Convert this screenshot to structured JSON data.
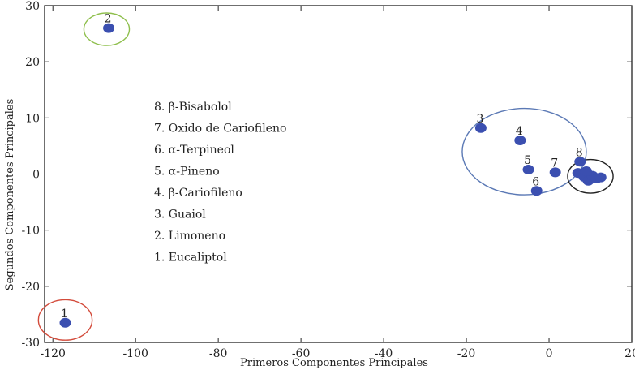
{
  "chart_data": {
    "type": "scatter",
    "title": "",
    "xlabel": "Primeros Componentes Principales",
    "ylabel": "Segundos Componentes Principales",
    "xlim": [
      -122,
      20
    ],
    "ylim": [
      -30,
      30
    ],
    "xticks": [
      -120,
      -100,
      -80,
      -60,
      -40,
      -20,
      0,
      20
    ],
    "yticks": [
      -30,
      -20,
      -10,
      0,
      10,
      20,
      30
    ],
    "grid": false,
    "marker_color": "#3b4fb0",
    "points": [
      {
        "label": "1",
        "x": -117,
        "y": -26.5
      },
      {
        "label": "2",
        "x": -106.5,
        "y": 26
      },
      {
        "label": "3",
        "x": -16.5,
        "y": 8.2
      },
      {
        "label": "4",
        "x": -7,
        "y": 6
      },
      {
        "label": "5",
        "x": -5,
        "y": 0.8
      },
      {
        "label": "6",
        "x": -3,
        "y": -3
      },
      {
        "label": "7",
        "x": 1.5,
        "y": 0.3
      },
      {
        "label": "8",
        "x": 7.5,
        "y": 2.2
      },
      {
        "label": "",
        "x": 7,
        "y": 0.2
      },
      {
        "label": "",
        "x": 8.5,
        "y": -0.5
      },
      {
        "label": "",
        "x": 9.5,
        "y": -1.2
      },
      {
        "label": "",
        "x": 10.5,
        "y": -0.3
      },
      {
        "label": "",
        "x": 11.5,
        "y": -0.8
      },
      {
        "label": "",
        "x": 12.5,
        "y": -0.6
      },
      {
        "label": "",
        "x": 9,
        "y": 0.5
      }
    ],
    "clusters": [
      {
        "cx": -117,
        "cy": -26,
        "rx": 6.5,
        "ry": 3.6,
        "color": "#d34b3b"
      },
      {
        "cx": -107,
        "cy": 25.8,
        "rx": 5.5,
        "ry": 2.9,
        "color": "#8fbf4d"
      },
      {
        "cx": -6,
        "cy": 4,
        "rx": 15,
        "ry": 7.7,
        "color": "#5b79b5"
      },
      {
        "cx": 10,
        "cy": -0.4,
        "rx": 5.5,
        "ry": 3.0,
        "color": "#222222"
      }
    ],
    "legend": [
      "8. β-Bisabolol",
      "7. Oxido de Cariofileno",
      "6. α-Terpineol",
      "5. α-Pineno",
      "4. β-Cariofileno",
      "3. Guaiol",
      "2. Limoneno",
      "1. Eucaliptol"
    ]
  }
}
